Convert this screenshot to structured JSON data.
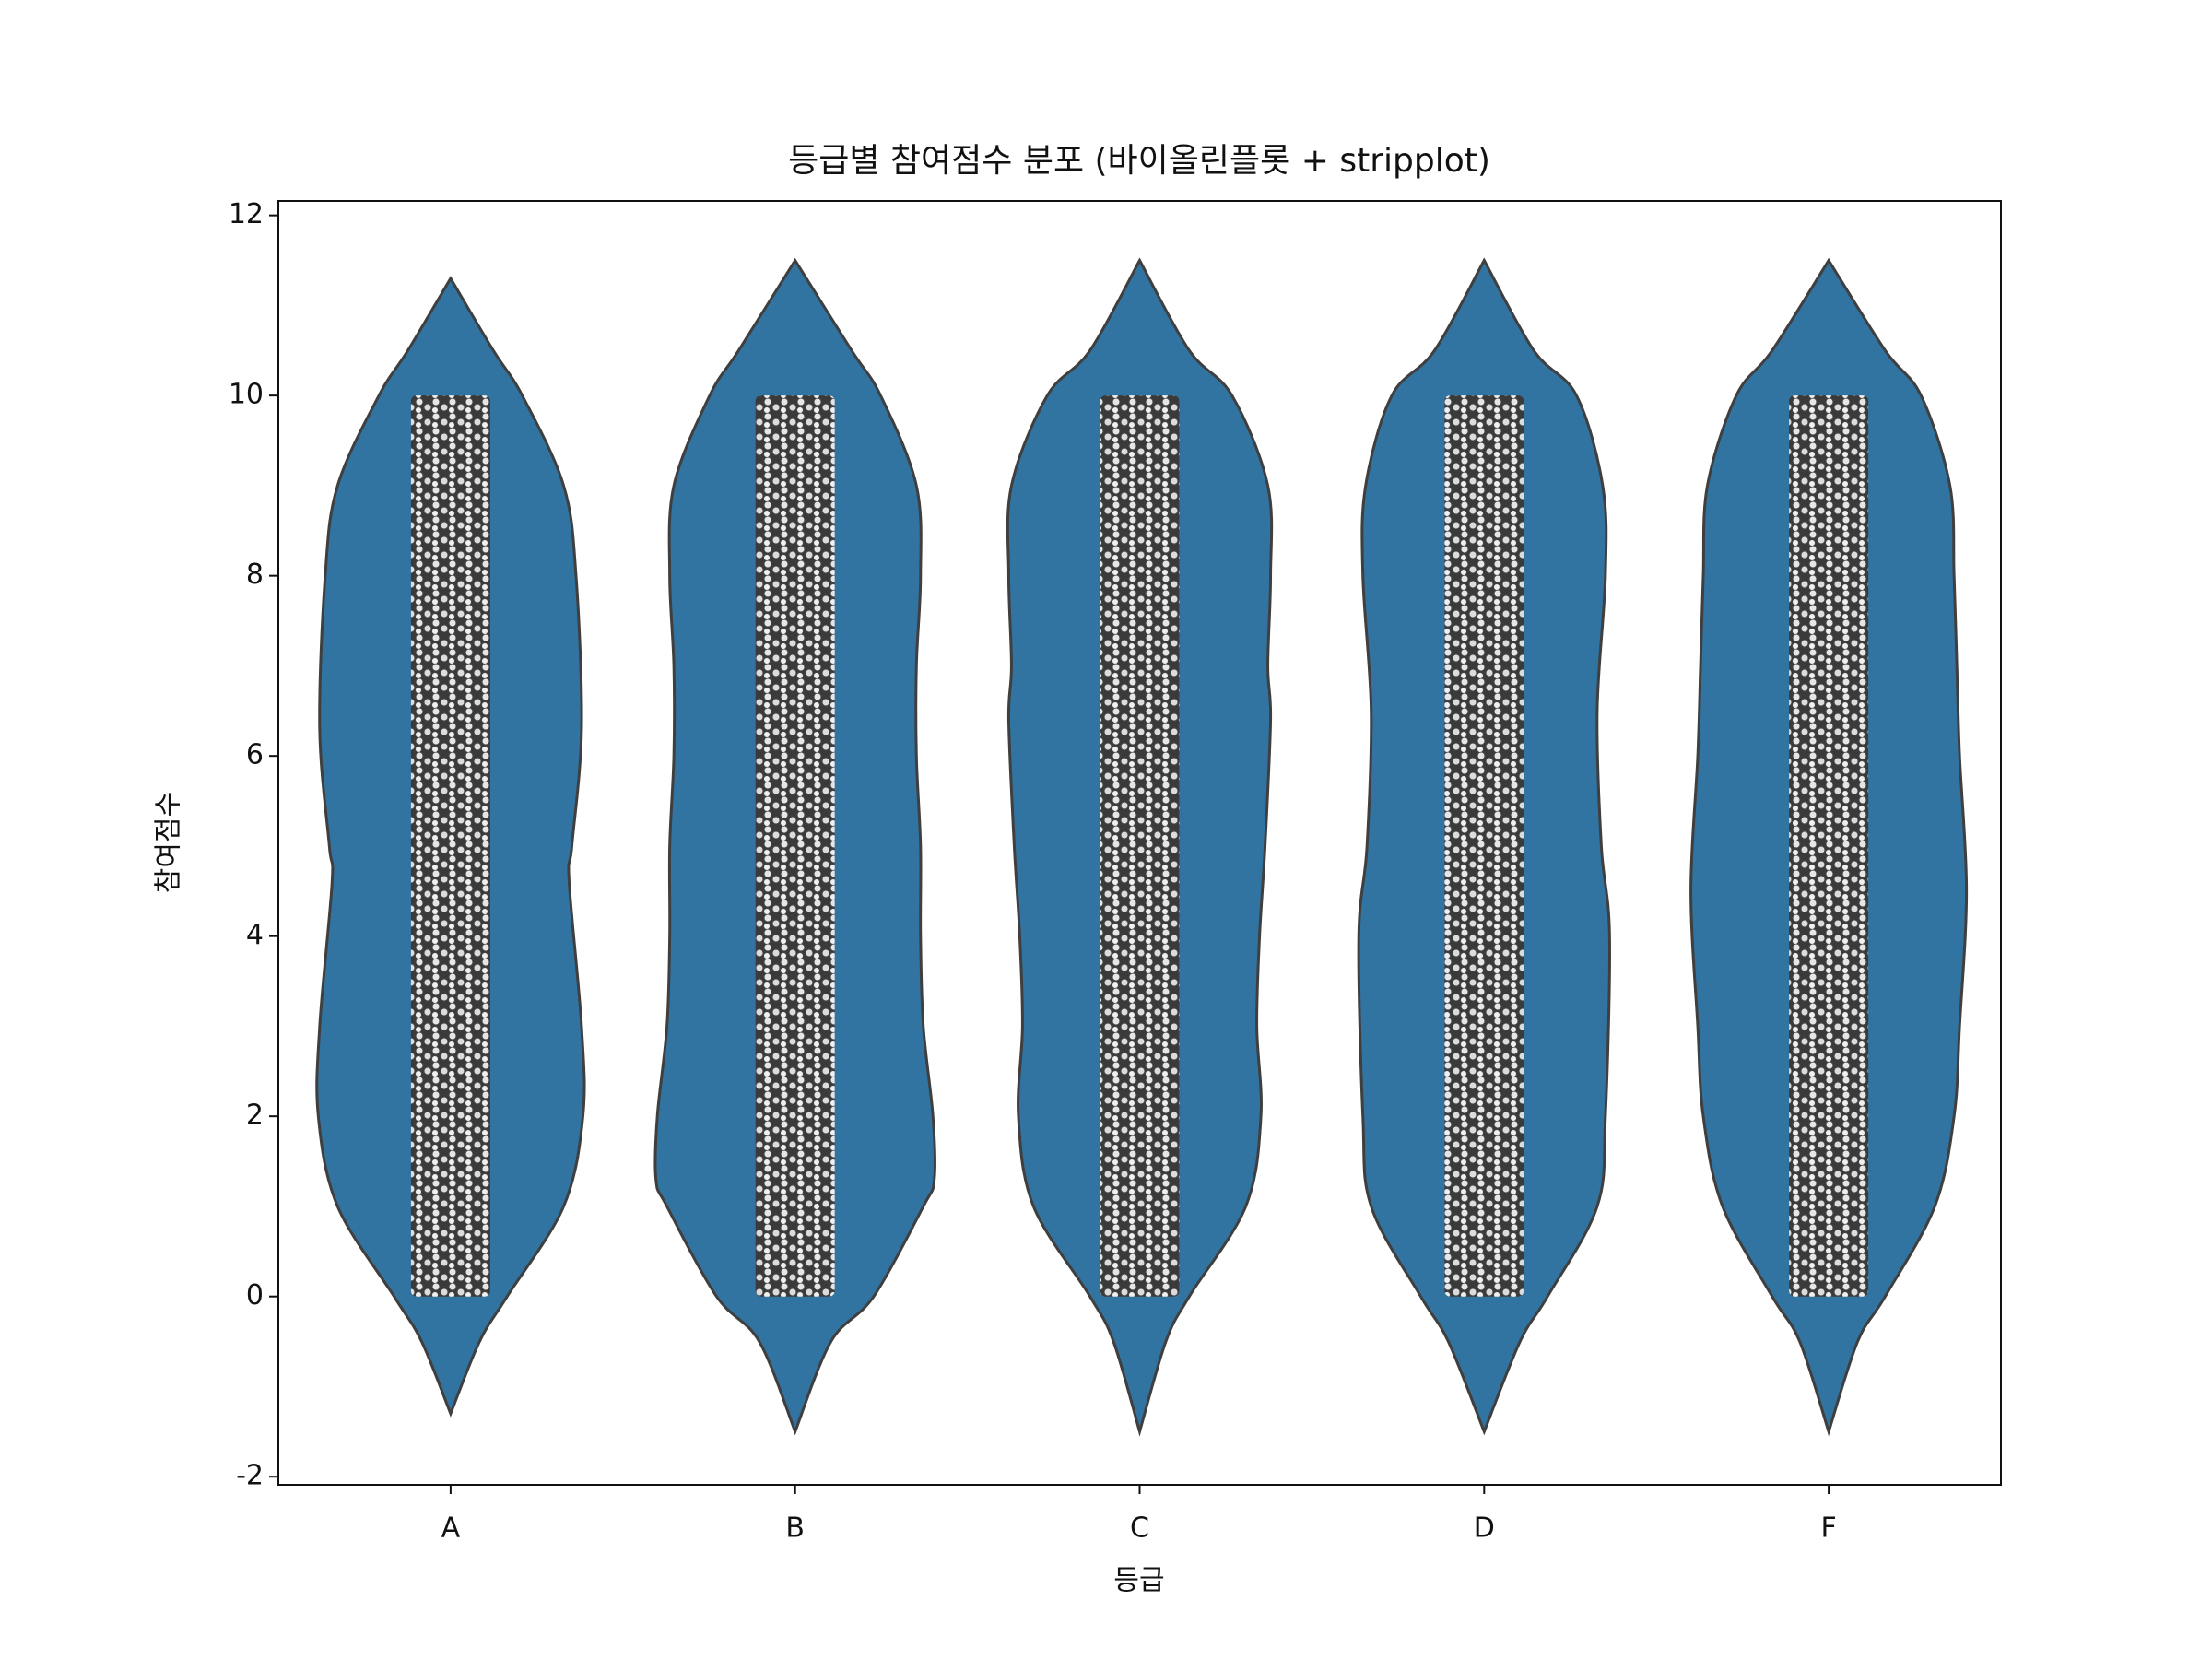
{
  "chart_data": {
    "type": "violin",
    "title": "등급별 참여점수 분포 (바이올린플롯 + stripplot)",
    "x_label": "등급",
    "y_label": "참여점수",
    "categories": [
      "A",
      "B",
      "C",
      "D",
      "F"
    ],
    "color": "#3274a1",
    "edge_color": "#3f3f3f",
    "ylim": [
      -2.09,
      12.16
    ],
    "yticks": [
      -2,
      0,
      2,
      4,
      6,
      8,
      10,
      12
    ],
    "violins": [
      {
        "y": [
          -1.3,
          -0.5,
          0,
          1,
          2,
          3,
          4.6,
          5,
          6.3,
          8,
          9,
          10,
          10.5,
          11.3
        ],
        "width": [
          0,
          0.21,
          0.41,
          0.82,
          0.96,
          0.95,
          0.86,
          0.88,
          0.95,
          0.91,
          0.82,
          0.52,
          0.31,
          0
        ],
        "data_min": 0,
        "data_max": 10
      },
      {
        "y": [
          -1.5,
          -0.5,
          0,
          1,
          1.3,
          2,
          3,
          4,
          5,
          6,
          7,
          8,
          9,
          10,
          10.5,
          11.5
        ],
        "width": [
          0,
          0.26,
          0.57,
          0.93,
          1.01,
          1.0,
          0.93,
          0.91,
          0.91,
          0.88,
          0.88,
          0.91,
          0.88,
          0.62,
          0.41,
          0
        ],
        "data_min": 0,
        "data_max": 10
      },
      {
        "y": [
          -1.5,
          -0.5,
          0,
          1,
          2,
          3,
          4,
          5,
          6.4,
          7,
          8,
          9,
          10,
          10.5,
          11.5
        ],
        "width": [
          0,
          0.19,
          0.36,
          0.77,
          0.88,
          0.85,
          0.87,
          0.91,
          0.95,
          0.93,
          0.95,
          0.93,
          0.67,
          0.36,
          0
        ],
        "data_min": 0,
        "data_max": 10
      },
      {
        "y": [
          -1.5,
          -0.5,
          0,
          1,
          2,
          4,
          5,
          6.5,
          8,
          9,
          10,
          10.5,
          11.5
        ],
        "width": [
          0,
          0.26,
          0.46,
          0.82,
          0.88,
          0.91,
          0.85,
          0.82,
          0.88,
          0.86,
          0.67,
          0.36,
          0
        ],
        "data_min": 0,
        "data_max": 10
      },
      {
        "y": [
          -1.5,
          -0.5,
          0,
          1,
          2,
          3,
          4.5,
          6,
          7,
          8,
          9,
          10,
          10.5,
          11.5
        ],
        "width": [
          0,
          0.21,
          0.41,
          0.77,
          0.91,
          0.95,
          1.0,
          0.95,
          0.93,
          0.91,
          0.88,
          0.67,
          0.41,
          0
        ],
        "data_min": 0,
        "data_max": 10
      }
    ]
  }
}
